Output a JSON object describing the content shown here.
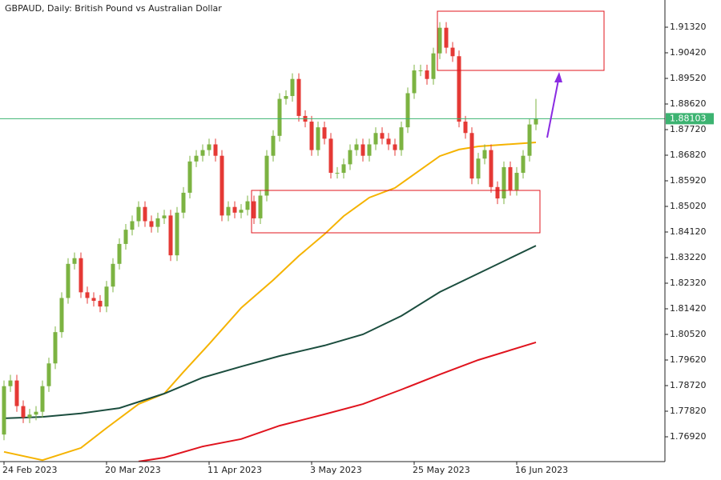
{
  "chart_data": {
    "type": "candlestick",
    "title": "GBPAUD, Daily:  British Pound vs Australian Dollar",
    "categories": [
      "24 Feb 2023",
      null,
      null,
      null,
      null,
      null,
      null,
      null,
      null,
      null,
      null,
      null,
      null,
      null,
      null,
      null,
      "20 Mar 2023",
      null,
      null,
      null,
      null,
      null,
      null,
      null,
      null,
      null,
      null,
      null,
      null,
      null,
      null,
      null,
      "11 Apr 2023",
      null,
      null,
      null,
      null,
      null,
      null,
      null,
      null,
      null,
      null,
      null,
      null,
      null,
      null,
      null,
      "3 May 2023",
      null,
      null,
      null,
      null,
      null,
      null,
      null,
      null,
      null,
      null,
      null,
      null,
      null,
      null,
      null,
      "25 May 2023",
      null,
      null,
      null,
      null,
      null,
      null,
      null,
      null,
      null,
      null,
      null,
      null,
      null,
      null,
      null,
      "16 Jun 2023",
      null,
      null,
      null
    ],
    "open": [
      1.77,
      1.787,
      1.789,
      1.78,
      1.776,
      1.777,
      1.778,
      1.787,
      1.795,
      1.806,
      1.818,
      1.83,
      1.832,
      1.82,
      1.818,
      1.817,
      1.815,
      1.822,
      1.83,
      1.837,
      1.842,
      1.845,
      1.85,
      1.845,
      1.843,
      1.846,
      1.847,
      1.833,
      1.848,
      1.855,
      1.866,
      1.868,
      1.87,
      1.872,
      1.868,
      1.847,
      1.85,
      1.848,
      1.849,
      1.852,
      1.846,
      1.854,
      1.868,
      1.875,
      1.888,
      1.889,
      1.895,
      1.882,
      1.88,
      1.87,
      1.878,
      1.874,
      1.862,
      1.862,
      1.865,
      1.87,
      1.872,
      1.868,
      1.872,
      1.876,
      1.874,
      1.872,
      1.87,
      1.878,
      1.89,
      1.898,
      1.898,
      1.895,
      1.904,
      1.913,
      1.906,
      1.903,
      1.88,
      1.876,
      1.86,
      1.867,
      1.87,
      1.857,
      1.853,
      1.864,
      1.856,
      1.862,
      1.868,
      1.879
    ],
    "high": [
      1.789,
      1.791,
      1.791,
      1.782,
      1.779,
      1.78,
      1.789,
      1.797,
      1.808,
      1.82,
      1.832,
      1.834,
      1.834,
      1.822,
      1.82,
      1.819,
      1.824,
      1.832,
      1.839,
      1.844,
      1.847,
      1.852,
      1.852,
      1.847,
      1.848,
      1.849,
      1.849,
      1.85,
      1.857,
      1.868,
      1.87,
      1.872,
      1.874,
      1.874,
      1.87,
      1.852,
      1.852,
      1.851,
      1.854,
      1.854,
      1.856,
      1.87,
      1.877,
      1.89,
      1.891,
      1.897,
      1.897,
      1.884,
      1.882,
      1.88,
      1.88,
      1.876,
      1.864,
      1.867,
      1.872,
      1.874,
      1.874,
      1.874,
      1.878,
      1.878,
      1.876,
      1.874,
      1.88,
      1.892,
      1.9,
      1.9,
      1.9,
      1.906,
      1.915,
      1.915,
      1.908,
      1.905,
      1.882,
      1.878,
      1.869,
      1.872,
      1.872,
      1.859,
      1.866,
      1.866,
      1.864,
      1.87,
      1.881,
      1.888
    ],
    "low": [
      1.768,
      1.785,
      1.778,
      1.774,
      1.774,
      1.775,
      1.776,
      1.785,
      1.793,
      1.804,
      1.816,
      1.828,
      1.818,
      1.816,
      1.815,
      1.813,
      1.813,
      1.82,
      1.828,
      1.835,
      1.84,
      1.843,
      1.843,
      1.841,
      1.841,
      1.844,
      1.831,
      1.831,
      1.846,
      1.853,
      1.864,
      1.866,
      1.868,
      1.866,
      1.845,
      1.845,
      1.846,
      1.846,
      1.847,
      1.844,
      1.844,
      1.852,
      1.866,
      1.873,
      1.886,
      1.887,
      1.88,
      1.878,
      1.868,
      1.868,
      1.872,
      1.86,
      1.86,
      1.86,
      1.863,
      1.868,
      1.866,
      1.866,
      1.87,
      1.872,
      1.87,
      1.868,
      1.868,
      1.876,
      1.888,
      1.896,
      1.893,
      1.893,
      1.902,
      1.904,
      1.901,
      1.878,
      1.874,
      1.858,
      1.858,
      1.865,
      1.855,
      1.851,
      1.851,
      1.854,
      1.854,
      1.86,
      1.866,
      1.877
    ],
    "close": [
      1.787,
      1.789,
      1.78,
      1.776,
      1.777,
      1.778,
      1.787,
      1.795,
      1.806,
      1.818,
      1.83,
      1.832,
      1.82,
      1.818,
      1.817,
      1.815,
      1.822,
      1.83,
      1.837,
      1.842,
      1.845,
      1.85,
      1.845,
      1.843,
      1.846,
      1.847,
      1.833,
      1.848,
      1.855,
      1.866,
      1.868,
      1.87,
      1.872,
      1.868,
      1.847,
      1.85,
      1.848,
      1.849,
      1.852,
      1.846,
      1.854,
      1.868,
      1.875,
      1.888,
      1.889,
      1.895,
      1.882,
      1.88,
      1.87,
      1.878,
      1.874,
      1.862,
      1.862,
      1.865,
      1.87,
      1.872,
      1.868,
      1.872,
      1.876,
      1.874,
      1.872,
      1.87,
      1.878,
      1.89,
      1.898,
      1.898,
      1.895,
      1.904,
      1.913,
      1.906,
      1.903,
      1.88,
      1.876,
      1.86,
      1.867,
      1.87,
      1.857,
      1.853,
      1.864,
      1.856,
      1.862,
      1.868,
      1.879,
      1.881
    ],
    "up_color": "#7cb342",
    "down_color": "#e53935",
    "lines": [
      {
        "color": "#f5b300",
        "x": [
          0,
          6,
          12,
          16,
          21,
          25,
          28,
          32,
          37,
          42,
          46,
          50,
          53,
          57,
          61,
          64,
          68,
          71,
          74,
          83
        ],
        "values": [
          1.7639,
          1.761,
          1.7653,
          1.7723,
          1.7807,
          1.7844,
          1.792,
          1.8018,
          1.8145,
          1.8243,
          1.8328,
          1.8404,
          1.8468,
          1.8533,
          1.8567,
          1.8615,
          1.8679,
          1.8702,
          1.8713,
          1.8727
        ]
      },
      {
        "color": "#1b4d3e",
        "x": [
          0,
          6,
          12,
          18,
          25,
          31,
          37,
          43,
          50,
          56,
          62,
          68,
          74,
          83
        ],
        "values": [
          1.7757,
          1.7762,
          1.7774,
          1.7793,
          1.7844,
          1.79,
          1.7939,
          1.7976,
          1.8013,
          1.8052,
          1.8117,
          1.8201,
          1.8266,
          1.8364
        ]
      },
      {
        "color": "#e0141e",
        "x": [
          21,
          25,
          31,
          37,
          43,
          50,
          56,
          62,
          68,
          74,
          83
        ],
        "values": [
          1.7605,
          1.7619,
          1.7658,
          1.7684,
          1.7731,
          1.7771,
          1.7807,
          1.7858,
          1.7911,
          1.7962,
          1.8024
        ]
      }
    ],
    "last_price": 1.88103,
    "last_price_color": "#3cb371",
    "ylim": [
      1.76048,
      1.92276
    ],
    "yticks": [
      {
        "value": 1.9132,
        "label": "1.91320"
      },
      {
        "value": 1.9042,
        "label": "1.90420"
      },
      {
        "value": 1.8952,
        "label": "1.89520"
      },
      {
        "value": 1.8862,
        "label": "1.88620"
      },
      {
        "value": 1.8772,
        "label": "1.87720"
      },
      {
        "value": 1.8682,
        "label": "1.86820"
      },
      {
        "value": 1.8592,
        "label": "1.85920"
      },
      {
        "value": 1.8502,
        "label": "1.85020"
      },
      {
        "value": 1.8412,
        "label": "1.84120"
      },
      {
        "value": 1.8322,
        "label": "1.83220"
      },
      {
        "value": 1.8232,
        "label": "1.82320"
      },
      {
        "value": 1.8142,
        "label": "1.81420"
      },
      {
        "value": 1.8052,
        "label": "1.80520"
      },
      {
        "value": 1.7962,
        "label": "1.79620"
      },
      {
        "value": 1.7872,
        "label": "1.78720"
      },
      {
        "value": 1.7782,
        "label": "1.77820"
      },
      {
        "value": 1.7692,
        "label": "1.76920"
      }
    ]
  }
}
